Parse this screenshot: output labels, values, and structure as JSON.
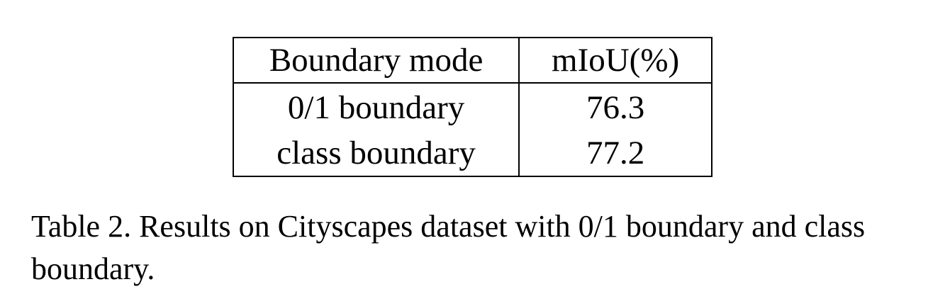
{
  "table": {
    "headers": [
      "Boundary mode",
      "mIoU(%)"
    ],
    "rows": [
      [
        "0/1 boundary",
        "76.3"
      ],
      [
        "class boundary",
        "77.2"
      ]
    ]
  },
  "caption": "Table 2. Results on Cityscapes dataset with 0/1 boundary and class boundary."
}
